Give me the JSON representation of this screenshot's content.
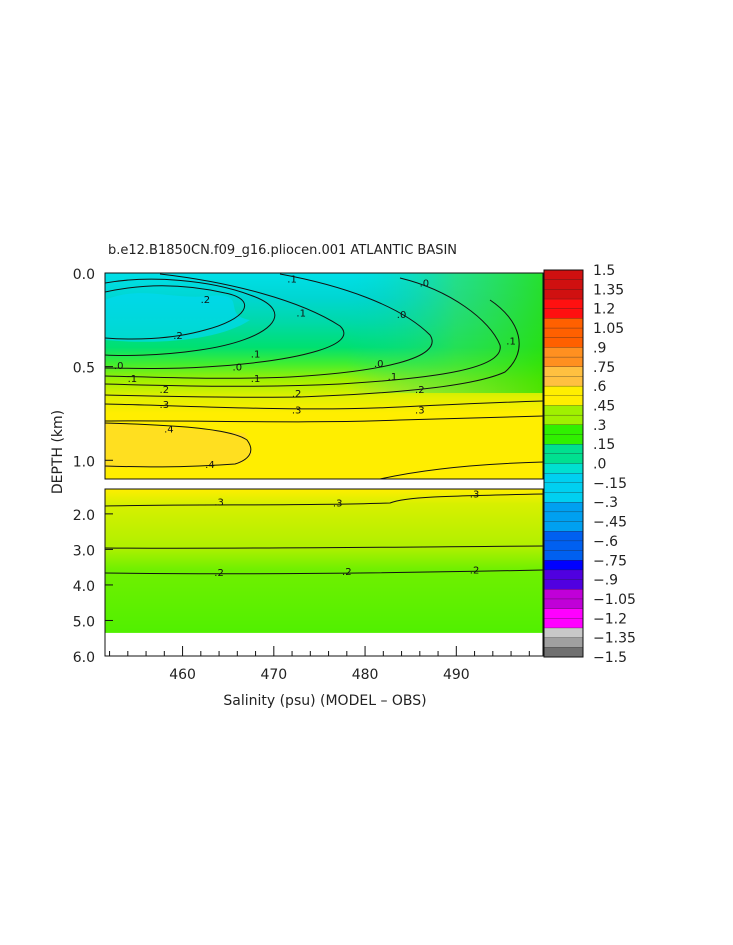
{
  "chart_data": {
    "type": "heatmap",
    "title": "b.e12.B1850CN.f09_g16.pliocen.001 ATLANTIC BASIN",
    "xlabel": "Salinity (psu) (MODEL – OBS)",
    "ylabel": "DEPTH (km)",
    "x_ticks": [
      "460",
      "470",
      "480",
      "490"
    ],
    "x_tick_values": [
      460,
      470,
      480,
      490
    ],
    "xlim": [
      451.5,
      499.5
    ],
    "upper_panel": {
      "y_ticks": [
        "0.0",
        "0.5",
        "1.0"
      ],
      "y_tick_values": [
        0.0,
        0.5,
        1.0
      ],
      "ylim": [
        0.0,
        1.1
      ]
    },
    "lower_panel": {
      "y_ticks": [
        "2.0",
        "3.0",
        "4.0",
        "5.0",
        "6.0"
      ],
      "y_tick_values": [
        2.0,
        3.0,
        4.0,
        5.0,
        6.0
      ],
      "ylim": [
        1.3,
        6.0
      ],
      "data_bottom_km": 5.35
    },
    "contour_labels_upper": [
      {
        "text": ".2",
        "x": 462.5,
        "y": 0.14
      },
      {
        "text": ".1",
        "x": 472.0,
        "y": 0.03
      },
      {
        "text": ".0",
        "x": 486.5,
        "y": 0.05
      },
      {
        "text": ".1",
        "x": 473.0,
        "y": 0.21
      },
      {
        "text": ".0",
        "x": 484.0,
        "y": 0.22
      },
      {
        "text": ".2",
        "x": 459.5,
        "y": 0.33
      },
      {
        "text": ".1",
        "x": 468.0,
        "y": 0.43
      },
      {
        "text": ".0",
        "x": 453.0,
        "y": 0.49
      },
      {
        "text": ".0",
        "x": 466.0,
        "y": 0.5
      },
      {
        "text": ".0",
        "x": 481.5,
        "y": 0.48
      },
      {
        "text": ".1",
        "x": 454.5,
        "y": 0.56
      },
      {
        "text": ".1",
        "x": 468.0,
        "y": 0.56
      },
      {
        "text": ".1",
        "x": 483.0,
        "y": 0.55
      },
      {
        "text": ".2",
        "x": 458.0,
        "y": 0.62
      },
      {
        "text": ".2",
        "x": 472.5,
        "y": 0.64
      },
      {
        "text": ".2",
        "x": 486.0,
        "y": 0.62
      },
      {
        "text": ".3",
        "x": 458.0,
        "y": 0.7
      },
      {
        "text": ".3",
        "x": 472.5,
        "y": 0.73
      },
      {
        "text": ".3",
        "x": 486.0,
        "y": 0.73
      },
      {
        "text": ".4",
        "x": 458.5,
        "y": 0.83
      },
      {
        "text": ".4",
        "x": 463.0,
        "y": 1.02
      },
      {
        "text": ".1",
        "x": 496.0,
        "y": 0.36
      }
    ],
    "contour_labels_lower": [
      {
        "text": ".3",
        "x": 464.0,
        "y": 1.65
      },
      {
        "text": ".3",
        "x": 477.0,
        "y": 1.68
      },
      {
        "text": ".3",
        "x": 492.0,
        "y": 1.42
      },
      {
        "text": ".2",
        "x": 464.0,
        "y": 3.63
      },
      {
        "text": ".2",
        "x": 478.0,
        "y": 3.61
      },
      {
        "text": ".2",
        "x": 492.0,
        "y": 3.56
      }
    ],
    "colorbar": {
      "labels": [
        "1.5",
        "1.35",
        "1.2",
        "1.05",
        ".9",
        ".75",
        ".6",
        ".45",
        ".3",
        ".15",
        ".0",
        "−.15",
        "−.3",
        "−.45",
        "−.6",
        "−.75",
        "−.9",
        "−1.05",
        "−1.2",
        "−1.35",
        "−1.5"
      ],
      "values": [
        1.5,
        1.35,
        1.2,
        1.05,
        0.9,
        0.75,
        0.6,
        0.45,
        0.3,
        0.15,
        0.0,
        -0.15,
        -0.3,
        -0.45,
        -0.6,
        -0.75,
        -0.9,
        -1.05,
        -1.2,
        -1.35,
        -1.5
      ],
      "range": [
        -1.5,
        1.5
      ]
    }
  }
}
